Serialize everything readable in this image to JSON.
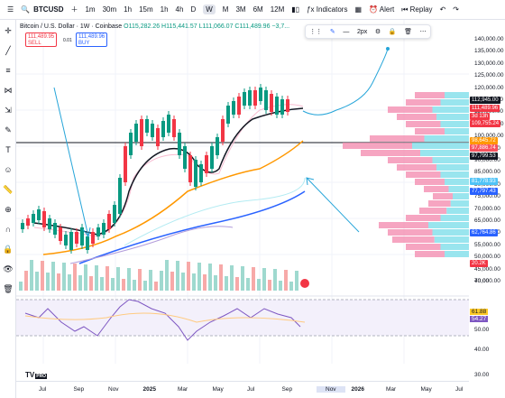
{
  "topbar": {
    "symbol": "BTCUSD",
    "intervals": [
      "1m",
      "30m",
      "1h",
      "15m",
      "1h",
      "4h",
      "D",
      "W",
      "M",
      "3M",
      "6M",
      "12M"
    ],
    "active_interval": "W",
    "indicators_label": "Indicators",
    "alert_label": "Alert",
    "replay_label": "Replay"
  },
  "legend": {
    "title": "Bitcoin / U.S. Dollar · 1W · Coinbase",
    "ohlc": "O115,282.26 H115,441.57 L111,066.07 C111,489.96 −3,7..."
  },
  "order": {
    "sell_price": "111,489.95",
    "sell_label": "SELL",
    "spread": "0.01",
    "buy_price": "111,489.96",
    "buy_label": "BUY"
  },
  "drawbar": {
    "width_label": "2px"
  },
  "right_ticks": [
    "140,000.00",
    "135,000.00",
    "130,000.00",
    "125,000.00",
    "120,000.00",
    "115,000.00",
    "110,000.00",
    "105,000.00",
    "100,000.00",
    "95,000.00",
    "90,000.00",
    "85,000.00",
    "80,000.00",
    "75,000.00",
    "70,000.00",
    "65,000.00",
    "60,000.00",
    "55,000.00",
    "50,000.00",
    "45,000.00",
    "40,000.00"
  ],
  "price_tags": [
    {
      "label": "112,945.00",
      "color": "#131722"
    },
    {
      "label": "111,489.96",
      "color": "#f23645"
    },
    {
      "label": "3d 13h",
      "color": "#f23645"
    },
    {
      "label": "109,755.24",
      "color": "#f23645"
    },
    {
      "label": "98,645.72",
      "color": "#ff9800"
    },
    {
      "label": "97,886.74",
      "color": "#f7525f"
    },
    {
      "label": "97,799.53",
      "color": "#131722"
    },
    {
      "label": "81,778.93",
      "color": "#4fc3f7"
    },
    {
      "label": "77,797.43",
      "color": "#2962ff"
    },
    {
      "label": "62,764.86",
      "color": "#2962ff"
    },
    {
      "label": "20.2K",
      "color": "#f23645"
    }
  ],
  "rsi_ticks": [
    "70.00",
    "61.88",
    "54.27",
    "50.00",
    "40.00",
    "30.00"
  ],
  "time_labels": [
    "Jul",
    "Sep",
    "Nov",
    "2025",
    "Mar",
    "May",
    "Jul",
    "Sep",
    "Nov",
    "2026",
    "Mar",
    "May",
    "Jul"
  ],
  "logo": {
    "text": "TV",
    "pro": "PRO"
  },
  "colors": {
    "bull": "#089981",
    "bear": "#f23645",
    "ema_black": "#131722",
    "ema_orange": "#ff9800",
    "ema_blue": "#2962ff",
    "ema_light": "#b2ebf2",
    "arrow": "#26a5d9"
  }
}
